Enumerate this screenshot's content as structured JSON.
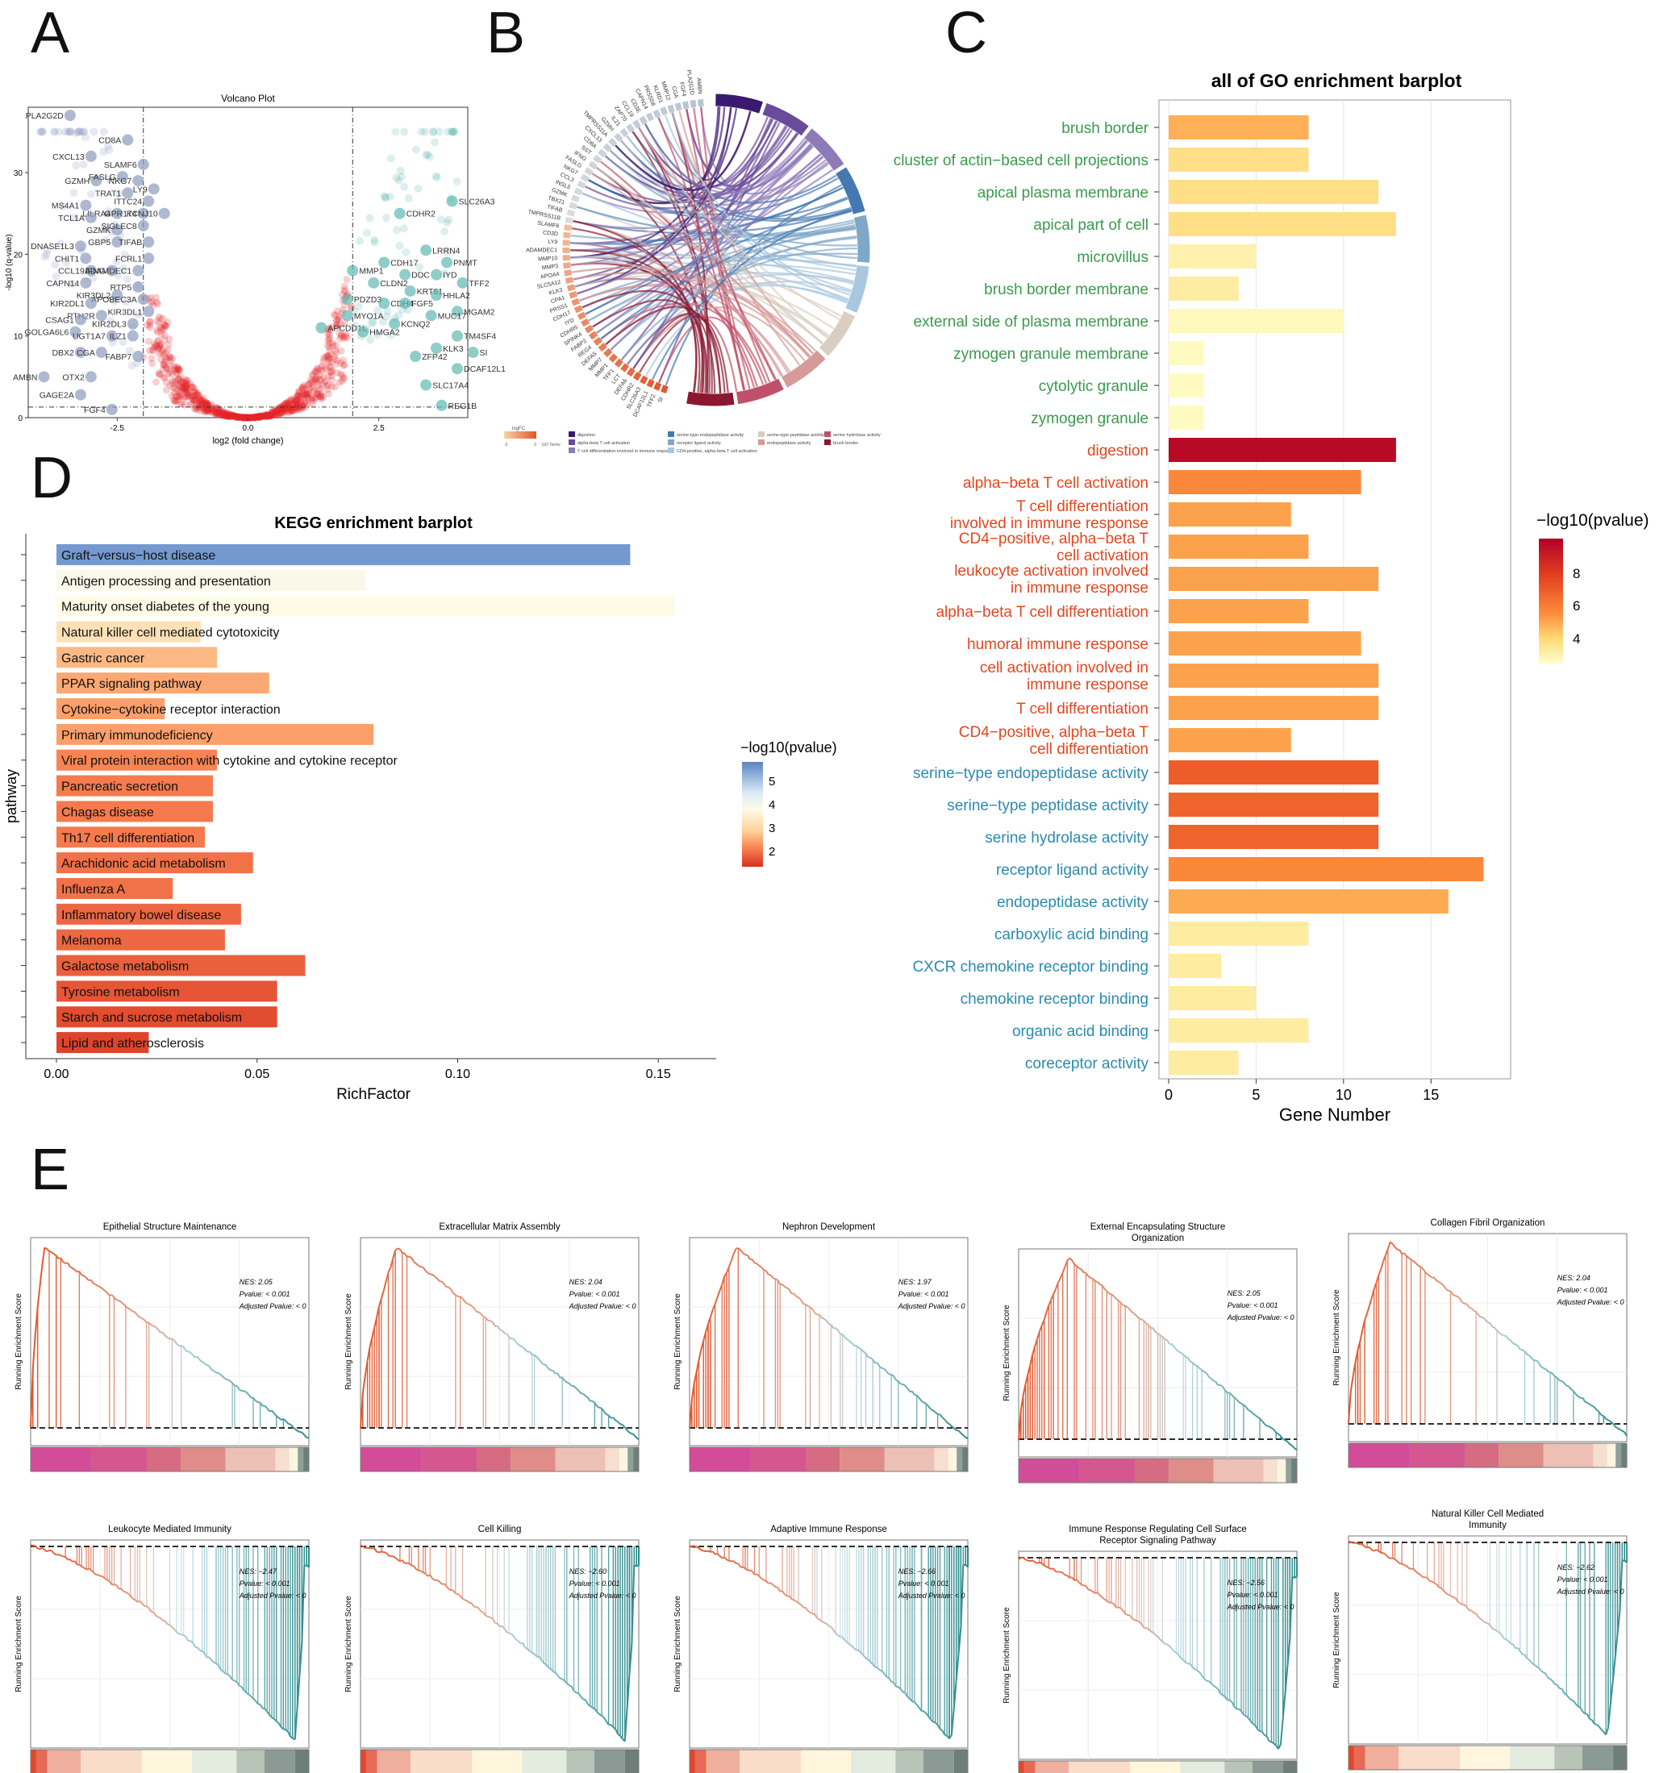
{
  "panel_labels": {
    "a": "A",
    "b": "B",
    "c": "C",
    "d": "D",
    "e": "E"
  },
  "colors": {
    "up": "#e3242b",
    "down": "#8b9bbd",
    "up_sig": "#5fb8b0",
    "go_green": "#3a9a4c",
    "go_red": "#e4461f",
    "go_blue": "#2a8ab0",
    "gsea_line_pos": "#e2562b",
    "gsea_line_neg": "#2a8a8a"
  },
  "chart_data": [
    {
      "id": "A",
      "type": "scatter",
      "title": "Volcano Plot",
      "xlabel": "log2 (fold change)",
      "ylabel": "-log10 (q-value)",
      "xlim": [
        -4.2,
        4.2
      ],
      "ylim": [
        0,
        38
      ],
      "xticks": [
        "-2.5",
        "0.0",
        "2.5"
      ],
      "yticks": [
        "0",
        "10",
        "20",
        "30"
      ],
      "thresholds": {
        "x": [
          -2,
          2
        ],
        "y": 1.3
      },
      "labeled_points": [
        {
          "gene": "PLA2G2D",
          "x": -3.4,
          "y": 37
        },
        {
          "gene": "CD8A",
          "x": -2.3,
          "y": 34
        },
        {
          "gene": "CXCL13",
          "x": -3.0,
          "y": 32
        },
        {
          "gene": "SLAMF6",
          "x": -2.0,
          "y": 31
        },
        {
          "gene": "GZMH",
          "x": -2.9,
          "y": 29
        },
        {
          "gene": "FASLG",
          "x": -2.4,
          "y": 29.5
        },
        {
          "gene": "NKG7",
          "x": -2.1,
          "y": 29
        },
        {
          "gene": "LY9",
          "x": -1.8,
          "y": 28
        },
        {
          "gene": "TRAT1",
          "x": -2.3,
          "y": 27.5
        },
        {
          "gene": "MS4A1",
          "x": -3.1,
          "y": 26
        },
        {
          "gene": "ITTC24",
          "x": -1.9,
          "y": 26.5
        },
        {
          "gene": "LILRA4",
          "x": -2.5,
          "y": 25
        },
        {
          "gene": "GPR174",
          "x": -2.0,
          "y": 25
        },
        {
          "gene": "KCNJ10",
          "x": -1.6,
          "y": 25
        },
        {
          "gene": "TCL1A",
          "x": -3.0,
          "y": 24.5
        },
        {
          "gene": "GZMK",
          "x": -2.5,
          "y": 23
        },
        {
          "gene": "SIGLEC8",
          "x": -2.0,
          "y": 23.5
        },
        {
          "gene": "DNASE1L3",
          "x": -3.2,
          "y": 21
        },
        {
          "gene": "GBP5",
          "x": -2.5,
          "y": 21.5
        },
        {
          "gene": "TIFAB",
          "x": -1.9,
          "y": 21.5
        },
        {
          "gene": "CHIT1",
          "x": -3.1,
          "y": 19.5
        },
        {
          "gene": "FCRL1",
          "x": -1.9,
          "y": 19.5
        },
        {
          "gene": "CCL19",
          "x": -3.0,
          "y": 18
        },
        {
          "gene": "IFNG",
          "x": -2.6,
          "y": 18
        },
        {
          "gene": "ADAMDEC1",
          "x": -2.1,
          "y": 18
        },
        {
          "gene": "CAPN14",
          "x": -3.1,
          "y": 16.5
        },
        {
          "gene": "RTP5",
          "x": -2.1,
          "y": 16
        },
        {
          "gene": "KIR3DL2",
          "x": -2.5,
          "y": 15
        },
        {
          "gene": "APOBEC3A",
          "x": -2.0,
          "y": 14.5
        },
        {
          "gene": "KIR2DL1",
          "x": -3.0,
          "y": 14
        },
        {
          "gene": "KIR3DL1",
          "x": -1.9,
          "y": 13
        },
        {
          "gene": "PTH2R",
          "x": -2.8,
          "y": 12.5
        },
        {
          "gene": "CSAG1",
          "x": -3.2,
          "y": 12
        },
        {
          "gene": "KIR2DL3",
          "x": -2.2,
          "y": 11.5
        },
        {
          "gene": "GOLGA6L6",
          "x": -3.3,
          "y": 10.5
        },
        {
          "gene": "UGT1A7",
          "x": -2.6,
          "y": 10
        },
        {
          "gene": "ILZ1",
          "x": -2.2,
          "y": 10
        },
        {
          "gene": "DBX2",
          "x": -3.2,
          "y": 8
        },
        {
          "gene": "CGA",
          "x": -2.8,
          "y": 8
        },
        {
          "gene": "FABP7",
          "x": -2.1,
          "y": 7.5
        },
        {
          "gene": "AMBN",
          "x": -3.9,
          "y": 5
        },
        {
          "gene": "OTX2",
          "x": -3.0,
          "y": 5
        },
        {
          "gene": "GAGE2A",
          "x": -3.2,
          "y": 2.8
        },
        {
          "gene": "FGF4",
          "x": -2.6,
          "y": 1
        },
        {
          "gene": "SLC26A3",
          "x": 3.9,
          "y": 26.5
        },
        {
          "gene": "CDHR2",
          "x": 2.9,
          "y": 25
        },
        {
          "gene": "LRRN4",
          "x": 3.4,
          "y": 20.5
        },
        {
          "gene": "CDH17",
          "x": 2.6,
          "y": 19
        },
        {
          "gene": "PNMT",
          "x": 3.8,
          "y": 19
        },
        {
          "gene": "MMP1",
          "x": 2.0,
          "y": 18
        },
        {
          "gene": "DDC",
          "x": 3.0,
          "y": 17.5
        },
        {
          "gene": "IYD",
          "x": 3.6,
          "y": 17.5
        },
        {
          "gene": "TFF2",
          "x": 4.1,
          "y": 16.5
        },
        {
          "gene": "CLDN2",
          "x": 2.4,
          "y": 16.5
        },
        {
          "gene": "KRT81",
          "x": 3.1,
          "y": 15.5
        },
        {
          "gene": "HHLA2",
          "x": 3.6,
          "y": 15
        },
        {
          "gene": "PDZD3",
          "x": 1.9,
          "y": 14.5
        },
        {
          "gene": "CDH4",
          "x": 2.6,
          "y": 14
        },
        {
          "gene": "FGF5",
          "x": 3.0,
          "y": 14
        },
        {
          "gene": "MGAM2",
          "x": 4.0,
          "y": 13
        },
        {
          "gene": "MYO1A",
          "x": 1.9,
          "y": 12.5
        },
        {
          "gene": "MUC17",
          "x": 3.5,
          "y": 12.5
        },
        {
          "gene": "KCNQ2",
          "x": 2.8,
          "y": 11.5
        },
        {
          "gene": "APCDD1L",
          "x": 1.4,
          "y": 11
        },
        {
          "gene": "HMGA2",
          "x": 2.2,
          "y": 10.5
        },
        {
          "gene": "TM4SF4",
          "x": 4.0,
          "y": 10
        },
        {
          "gene": "KLK3",
          "x": 3.6,
          "y": 8.5
        },
        {
          "gene": "SI",
          "x": 4.3,
          "y": 8
        },
        {
          "gene": "ZFP42",
          "x": 3.2,
          "y": 7.5
        },
        {
          "gene": "DCAF12L1",
          "x": 4.0,
          "y": 6
        },
        {
          "gene": "SLC17A4",
          "x": 3.4,
          "y": 4
        },
        {
          "gene": "REG1B",
          "x": 3.7,
          "y": 1.5
        }
      ]
    },
    {
      "id": "B",
      "type": "chord",
      "genes": [
        "SI",
        "TFF2",
        "DCAF12L1",
        "SLC26A3",
        "CDHR2",
        "DEFA6",
        "LCT",
        "TFF1",
        "MMP1",
        "MMP7",
        "DEFA5",
        "REG4",
        "FABP2",
        "SPINK4",
        "CDHR5",
        "IYD",
        "CDH17",
        "PRSS1",
        "CPA1",
        "KLK3",
        "SLC5A12",
        "APOA4",
        "MMP3",
        "MMP10",
        "ADAMDEC1",
        "LY9",
        "CD3D",
        "SLAMF6",
        "TMPRSS11B",
        "TIFAB",
        "TBX21",
        "GZMK",
        "INSL5",
        "CCL3",
        "NKG7",
        "FASLG",
        "IFNG",
        "SST",
        "CD8A",
        "CXCL13",
        "TMPRSS11A",
        "GZMH",
        "IL21",
        "ZAP70",
        "CCL19",
        "CD3E",
        "CAPN14",
        "PRSS58",
        "KLRD1",
        "MMP12",
        "CGA",
        "FGF4",
        "PLA2G2D",
        "AMBN"
      ],
      "legend_title": "logFC",
      "legend_terms_label": "GO Terms",
      "legend_scale": [
        "-3",
        "3"
      ],
      "terms": [
        "digestion",
        "alpha-beta T cell activation",
        "T cell differentiation involved in immune response",
        "serine-type endopeptidase activity",
        "receptor ligand activity",
        "CD4-positive, alpha-beta T cell activation",
        "serine-type peptidase activity",
        "endopeptidase activity",
        "serine hydrolase activity",
        "brush border"
      ],
      "term_colors": [
        "#3a1a6e",
        "#6a4a9a",
        "#8f7ab8",
        "#4478b0",
        "#7fa7c8",
        "#a9c7de",
        "#d8cfc2",
        "#d69a9a",
        "#c0506a",
        "#8a1830"
      ]
    },
    {
      "id": "C",
      "type": "bar",
      "orientation": "horizontal",
      "title": "all of GO enrichment barplot",
      "xlabel": "Gene Number",
      "xlim": [
        0,
        19
      ],
      "xticks": [
        "0",
        "5",
        "10",
        "15"
      ],
      "legend_title": "−log10(pvalue)",
      "legend_ticks": [
        "8",
        "6",
        "4"
      ],
      "categories": [
        {
          "label": "brush border",
          "value": 8,
          "neglogp": 6.2,
          "group": "CC"
        },
        {
          "label": "cluster of actin−based cell projections",
          "value": 8,
          "neglogp": 5.0,
          "group": "CC"
        },
        {
          "label": "apical plasma membrane",
          "value": 12,
          "neglogp": 5.0,
          "group": "CC"
        },
        {
          "label": "apical part of cell",
          "value": 13,
          "neglogp": 5.0,
          "group": "CC"
        },
        {
          "label": "microvillus",
          "value": 5,
          "neglogp": 4.0,
          "group": "CC"
        },
        {
          "label": "brush border membrane",
          "value": 4,
          "neglogp": 4.3,
          "group": "CC"
        },
        {
          "label": "external side of plasma membrane",
          "value": 10,
          "neglogp": 3.6,
          "group": "CC"
        },
        {
          "label": "zymogen granule membrane",
          "value": 2,
          "neglogp": 3.5,
          "group": "CC"
        },
        {
          "label": "cytolytic granule",
          "value": 2,
          "neglogp": 3.5,
          "group": "CC"
        },
        {
          "label": "zymogen granule",
          "value": 2,
          "neglogp": 3.5,
          "group": "CC"
        },
        {
          "label": "digestion",
          "value": 13,
          "neglogp": 9.2,
          "group": "BP"
        },
        {
          "label": "alpha−beta T cell activation",
          "value": 11,
          "neglogp": 7.0,
          "group": "BP"
        },
        {
          "label": "T cell differentiation involved in immune response",
          "value": 7,
          "neglogp": 6.5,
          "group": "BP"
        },
        {
          "label": "CD4−positive, alpha−beta T cell activation",
          "value": 8,
          "neglogp": 6.5,
          "group": "BP"
        },
        {
          "label": "leukocyte activation involved in immune response",
          "value": 12,
          "neglogp": 6.5,
          "group": "BP"
        },
        {
          "label": "alpha−beta T cell differentiation",
          "value": 8,
          "neglogp": 6.5,
          "group": "BP"
        },
        {
          "label": "humoral immune response",
          "value": 11,
          "neglogp": 6.5,
          "group": "BP"
        },
        {
          "label": "cell activation involved in immune response",
          "value": 12,
          "neglogp": 6.5,
          "group": "BP"
        },
        {
          "label": "T cell differentiation",
          "value": 12,
          "neglogp": 6.5,
          "group": "BP"
        },
        {
          "label": "CD4−positive, alpha−beta T cell differentiation",
          "value": 7,
          "neglogp": 6.5,
          "group": "BP"
        },
        {
          "label": "serine−type endopeptidase activity",
          "value": 12,
          "neglogp": 7.7,
          "group": "MF"
        },
        {
          "label": "serine−type peptidase activity",
          "value": 12,
          "neglogp": 7.6,
          "group": "MF"
        },
        {
          "label": "serine hydrolase activity",
          "value": 12,
          "neglogp": 7.6,
          "group": "MF"
        },
        {
          "label": "receptor ligand activity",
          "value": 18,
          "neglogp": 7.0,
          "group": "MF"
        },
        {
          "label": "endopeptidase activity",
          "value": 16,
          "neglogp": 6.3,
          "group": "MF"
        },
        {
          "label": "carboxylic acid binding",
          "value": 8,
          "neglogp": 4.3,
          "group": "MF"
        },
        {
          "label": "CXCR chemokine receptor binding",
          "value": 3,
          "neglogp": 4.3,
          "group": "MF"
        },
        {
          "label": "chemokine receptor binding",
          "value": 5,
          "neglogp": 4.3,
          "group": "MF"
        },
        {
          "label": "organic acid binding",
          "value": 8,
          "neglogp": 4.3,
          "group": "MF"
        },
        {
          "label": "coreceptor activity",
          "value": 4,
          "neglogp": 4.3,
          "group": "MF"
        }
      ]
    },
    {
      "id": "D",
      "type": "bar",
      "orientation": "horizontal",
      "title": "KEGG enrichment barplot",
      "xlabel": "RichFactor",
      "ylabel": "pathway",
      "xlim": [
        0,
        0.16
      ],
      "xticks": [
        "0.00",
        "0.05",
        "0.10",
        "0.15"
      ],
      "legend_title": "−log10(pvalue)",
      "legend_ticks": [
        "5",
        "4",
        "3",
        "2"
      ],
      "categories": [
        {
          "label": "Graft−versus−host disease",
          "value": 0.143,
          "neglogp": 5.5
        },
        {
          "label": "Antigen processing and presentation",
          "value": 0.077,
          "neglogp": 4.2
        },
        {
          "label": "Maturity onset diabetes of the young",
          "value": 0.154,
          "neglogp": 4.1
        },
        {
          "label": "Natural killer cell mediated cytotoxicity",
          "value": 0.036,
          "neglogp": 3.7
        },
        {
          "label": "Gastric cancer",
          "value": 0.04,
          "neglogp": 3.2
        },
        {
          "label": "PPAR signaling pathway",
          "value": 0.053,
          "neglogp": 3.0
        },
        {
          "label": "Cytokine−cytokine receptor interaction",
          "value": 0.027,
          "neglogp": 2.9
        },
        {
          "label": "Primary immunodeficiency",
          "value": 0.079,
          "neglogp": 2.9
        },
        {
          "label": "Viral protein interaction with cytokine and cytokine receptor",
          "value": 0.04,
          "neglogp": 2.6
        },
        {
          "label": "Pancreatic secretion",
          "value": 0.039,
          "neglogp": 2.5
        },
        {
          "label": "Chagas disease",
          "value": 0.039,
          "neglogp": 2.5
        },
        {
          "label": "Th17 cell differentiation",
          "value": 0.037,
          "neglogp": 2.5
        },
        {
          "label": "Arachidonic acid metabolism",
          "value": 0.049,
          "neglogp": 2.4
        },
        {
          "label": "Influenza A",
          "value": 0.029,
          "neglogp": 2.4
        },
        {
          "label": "Inflammatory bowel disease",
          "value": 0.046,
          "neglogp": 2.3
        },
        {
          "label": "Melanoma",
          "value": 0.042,
          "neglogp": 2.3
        },
        {
          "label": "Galactose metabolism",
          "value": 0.062,
          "neglogp": 2.2
        },
        {
          "label": "Tyrosine metabolism",
          "value": 0.055,
          "neglogp": 2.1
        },
        {
          "label": "Starch and sucrose metabolism",
          "value": 0.055,
          "neglogp": 2.0
        },
        {
          "label": "Lipid and atherosclerosis",
          "value": 0.023,
          "neglogp": 1.9
        }
      ]
    },
    {
      "id": "E",
      "type": "line",
      "ylabel": "Running Enrichment Score",
      "stat_labels": {
        "nes": "NES:",
        "pvalue": "Pvalue:",
        "adj": "Adjusted Pvalue: < 0"
      },
      "plots": [
        {
          "title": "Epithelial Structure Maintenance",
          "nes": "2.05",
          "pvalue": "< 0.001",
          "direction": "up",
          "peak": 0.05,
          "hits": 30
        },
        {
          "title": "Extracellular Matrix Assembly",
          "nes": "2.04",
          "pvalue": "< 0.001",
          "direction": "up",
          "peak": 0.13,
          "hits": 34
        },
        {
          "title": "Nephron Development",
          "nes": "1.97",
          "pvalue": "< 0.001",
          "direction": "up",
          "peak": 0.17,
          "hits": 60
        },
        {
          "title": "External Encapsulating Structure Organization",
          "nes": "2.05",
          "pvalue": "< 0.001",
          "direction": "up",
          "peak": 0.18,
          "hits": 90
        },
        {
          "title": "Collagen Fibril Organization",
          "nes": "2.04",
          "pvalue": "< 0.001",
          "direction": "up",
          "peak": 0.15,
          "hits": 36
        },
        {
          "title": "Leukocyte Mediated Immunity",
          "nes": "−2.47",
          "pvalue": "< 0.001",
          "direction": "down",
          "peak": 0.95,
          "hits": 110
        },
        {
          "title": "Cell Killing",
          "nes": "−2.60",
          "pvalue": "< 0.001",
          "direction": "down",
          "peak": 0.95,
          "hits": 110
        },
        {
          "title": "Adaptive Immune Response",
          "nes": "−2.66",
          "pvalue": "< 0.001",
          "direction": "down",
          "peak": 0.94,
          "hits": 130
        },
        {
          "title": "Immune Response Regulating Cell Surface Receptor Signaling Pathway",
          "nes": "−2.56",
          "pvalue": "< 0.001",
          "direction": "down",
          "peak": 0.94,
          "hits": 110
        },
        {
          "title": "Natural Killer Cell Mediated Immunity",
          "nes": "−2.62",
          "pvalue": "< 0.001",
          "direction": "down",
          "peak": 0.93,
          "hits": 60
        }
      ]
    }
  ]
}
